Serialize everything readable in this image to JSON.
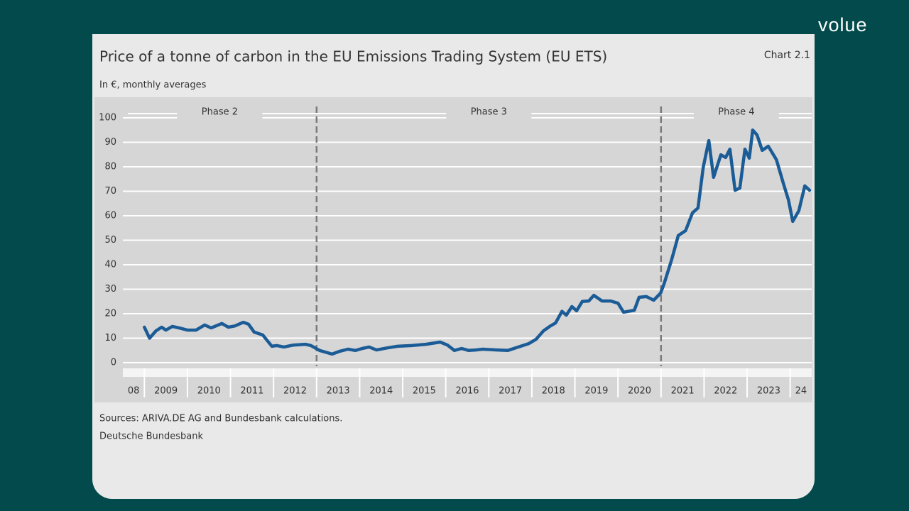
{
  "logo": "volue",
  "chart_data": {
    "type": "line",
    "title": "Price of a tonne of carbon in the EU Emissions Trading System (EU ETS)",
    "chart_label": "Chart 2.1",
    "subtitle": "In €, monthly averages",
    "source": "Sources: ARIVA.DE AG and Bundesbank calculations.",
    "publisher": "Deutsche Bundesbank",
    "color": "#1b5c97",
    "grid": true,
    "xlim": [
      2008.5,
      2024.5
    ],
    "xticks": [
      2009,
      2010,
      2011,
      2012,
      2013,
      2014,
      2015,
      2016,
      2017,
      2018,
      2019,
      2020,
      2021,
      2022,
      2023,
      2024
    ],
    "x_labels": [
      {
        "value": 2008.75,
        "label": "08"
      },
      {
        "value": 2009.5,
        "label": "2009"
      },
      {
        "value": 2010.5,
        "label": "2010"
      },
      {
        "value": 2011.5,
        "label": "2011"
      },
      {
        "value": 2012.5,
        "label": "2012"
      },
      {
        "value": 2013.5,
        "label": "2013"
      },
      {
        "value": 2014.5,
        "label": "2014"
      },
      {
        "value": 2015.5,
        "label": "2015"
      },
      {
        "value": 2016.5,
        "label": "2016"
      },
      {
        "value": 2017.5,
        "label": "2017"
      },
      {
        "value": 2018.5,
        "label": "2018"
      },
      {
        "value": 2019.5,
        "label": "2019"
      },
      {
        "value": 2020.5,
        "label": "2020"
      },
      {
        "value": 2021.5,
        "label": "2021"
      },
      {
        "value": 2022.5,
        "label": "2022"
      },
      {
        "value": 2023.5,
        "label": "2023"
      },
      {
        "value": 2024.25,
        "label": "24"
      }
    ],
    "ylim": [
      0,
      100
    ],
    "yticks": [
      0,
      10,
      20,
      30,
      40,
      50,
      60,
      70,
      80,
      90,
      100
    ],
    "phase_boundaries": [
      2013,
      2021
    ],
    "phase_labels": [
      "Phase 2",
      "Phase 3",
      "Phase 4"
    ],
    "x": [
      2009.0,
      2009.12,
      2009.27,
      2009.4,
      2009.5,
      2009.65,
      2009.85,
      2010.0,
      2010.2,
      2010.4,
      2010.55,
      2010.8,
      2010.95,
      2011.1,
      2011.3,
      2011.42,
      2011.55,
      2011.75,
      2011.96,
      2012.08,
      2012.24,
      2012.46,
      2012.74,
      2012.87,
      2013.07,
      2013.36,
      2013.53,
      2013.73,
      2013.9,
      2014.06,
      2014.22,
      2014.39,
      2014.63,
      2014.88,
      2015.21,
      2015.54,
      2015.87,
      2016.04,
      2016.2,
      2016.37,
      2016.53,
      2016.7,
      2016.86,
      2017.19,
      2017.44,
      2017.69,
      2017.93,
      2018.1,
      2018.27,
      2018.43,
      2018.55,
      2018.7,
      2018.8,
      2018.93,
      2019.04,
      2019.17,
      2019.32,
      2019.44,
      2019.63,
      2019.83,
      2020.0,
      2020.13,
      2020.38,
      2020.49,
      2020.66,
      2020.83,
      2020.99,
      2021.07,
      2021.24,
      2021.32,
      2021.4,
      2021.57,
      2021.73,
      2021.86,
      2021.98,
      2022.11,
      2022.22,
      2022.39,
      2022.5,
      2022.6,
      2022.72,
      2022.83,
      2022.95,
      2023.05,
      2023.13,
      2023.23,
      2023.35,
      2023.49,
      2023.68,
      2023.84,
      2023.96,
      2024.06,
      2024.2,
      2024.34,
      2024.45
    ],
    "values": [
      14.5,
      10,
      13,
      14.5,
      13.3,
      14.8,
      14,
      13.3,
      13.3,
      15.4,
      14.2,
      16,
      14.5,
      15,
      16.5,
      15.7,
      12.5,
      11.3,
      6.7,
      7,
      6.4,
      7.2,
      7.5,
      7,
      5,
      3.5,
      4.6,
      5.5,
      5,
      5.8,
      6.4,
      5.2,
      6,
      6.7,
      7,
      7.5,
      8.4,
      7.2,
      5,
      5.8,
      5,
      5.2,
      5.5,
      5.2,
      5,
      6.4,
      7.8,
      9.6,
      13,
      15,
      16.2,
      21,
      19.4,
      22.9,
      21.2,
      25,
      25.2,
      27.5,
      25.2,
      25.2,
      24.3,
      20.6,
      21.4,
      26.7,
      27,
      25.5,
      28.4,
      32.2,
      41.7,
      46.7,
      51.9,
      53.9,
      61.2,
      63.2,
      79.7,
      90.7,
      75.7,
      84.9,
      83.8,
      87.2,
      70.4,
      71.3,
      87.2,
      83.5,
      95,
      93,
      86.7,
      88.4,
      82.9,
      73.3,
      66.4,
      57.7,
      62,
      72.2,
      70.4
    ]
  }
}
